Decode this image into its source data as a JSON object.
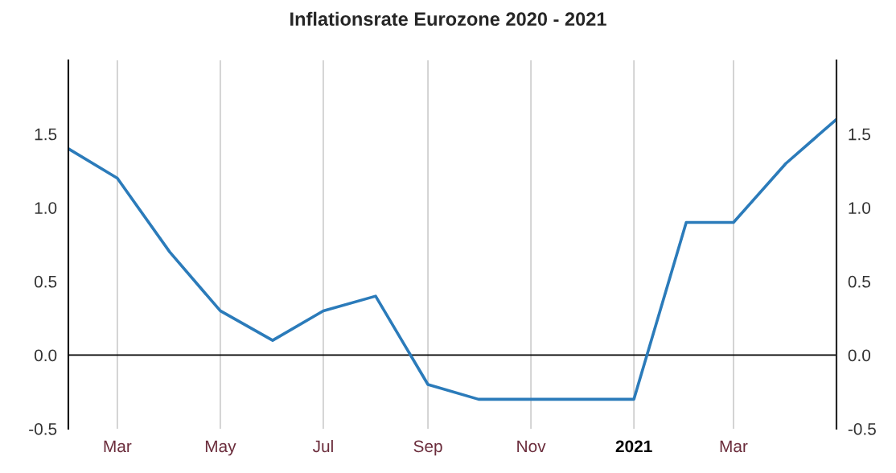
{
  "chart_data": {
    "type": "line",
    "title": "Inflationsrate Eurozone 2020 - 2021",
    "x": [
      "2020-02-01",
      "2020-03-01",
      "2020-04-01",
      "2020-05-01",
      "2020-06-01",
      "2020-07-01",
      "2020-08-01",
      "2020-09-01",
      "2020-10-01",
      "2020-11-01",
      "2020-12-01",
      "2021-01-01",
      "2021-02-01",
      "2021-03-01",
      "2021-04-01",
      "2021-05-01"
    ],
    "series": [
      {
        "color": "#2b7bba",
        "values": [
          1.4,
          1.2,
          0.7,
          0.3,
          0.1,
          0.3,
          0.4,
          -0.2,
          -0.3,
          -0.3,
          -0.3,
          -0.3,
          0.9,
          0.9,
          1.3,
          1.6
        ]
      }
    ],
    "xlim": [
      "2020-02-01",
      "2021-05-01"
    ],
    "xticks": [
      {
        "value": "2020-03-01",
        "label": "Mar"
      },
      {
        "value": "2020-05-01",
        "label": "May"
      },
      {
        "value": "2020-07-01",
        "label": "Jul"
      },
      {
        "value": "2020-09-01",
        "label": "Sep"
      },
      {
        "value": "2020-11-01",
        "label": "Nov"
      },
      {
        "value": "2021-01-01",
        "label": "2021"
      },
      {
        "value": "2021-03-01",
        "label": "Mar"
      }
    ],
    "ylim": [
      -0.5,
      2.0
    ],
    "yticks": [
      {
        "value": -0.5,
        "label": "-0.5"
      },
      {
        "value": 0,
        "label": "0.0"
      },
      {
        "value": 0.5,
        "label": "0.5"
      },
      {
        "value": 1,
        "label": "1.0"
      },
      {
        "value": 1.5,
        "label": "1.5"
      }
    ],
    "y2lim": [
      -0.5,
      2.0
    ],
    "y2ticks": [
      {
        "value": -0.5,
        "label": "-0.5"
      },
      {
        "value": 0,
        "label": "0.0"
      },
      {
        "value": 0.5,
        "label": "0.5"
      },
      {
        "value": 1,
        "label": "1.0"
      },
      {
        "value": 1.5,
        "label": "1.5"
      }
    ],
    "ref_lines": [
      {
        "axis": "y",
        "value": 0,
        "color": "#000000"
      }
    ],
    "grid": "x",
    "marker": "none",
    "line_style": "solid",
    "legend": false
  }
}
